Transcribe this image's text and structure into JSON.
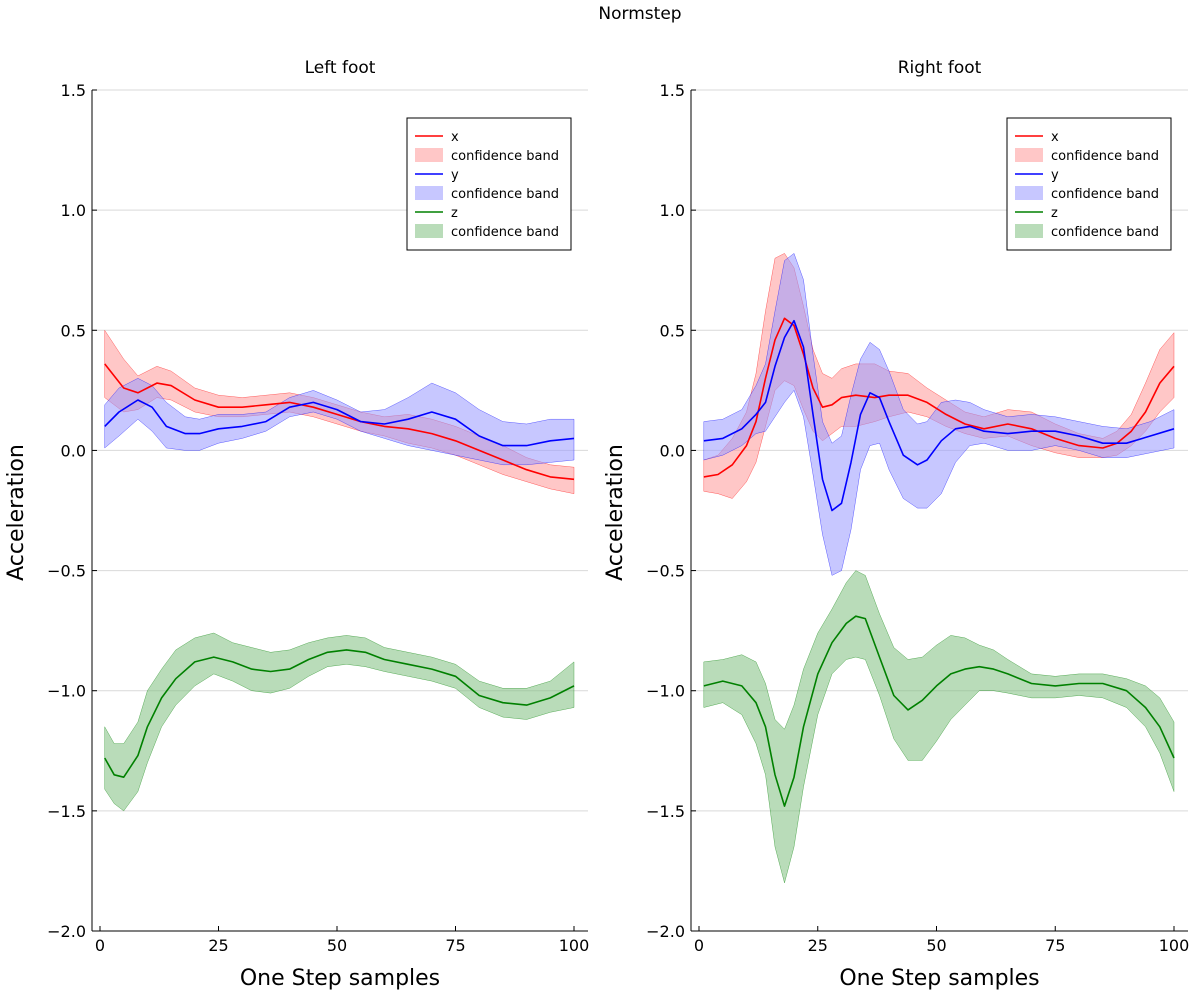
{
  "figure": {
    "title": "Normstep"
  },
  "colors": {
    "x": "#ff0000",
    "x_band": "#ff9999",
    "y": "#0000ff",
    "y_band": "#9999ff",
    "z": "#008000",
    "z_band": "#80c080"
  },
  "chart_data": [
    {
      "type": "line",
      "title": "Left foot",
      "xlabel": "One Step samples",
      "ylabel": "Acceleration",
      "xlim": [
        0,
        100
      ],
      "ylim": [
        -2.0,
        1.5
      ],
      "xticks": [
        0,
        25,
        50,
        75,
        100
      ],
      "yticks": [
        1.5,
        1.0,
        0.5,
        0.0,
        -0.5,
        -1.0,
        -1.5,
        -2.0
      ],
      "ytick_labels": [
        "1.5",
        "1.0",
        "0.5",
        "0.0",
        "−0.5",
        "−1.0",
        "−1.5",
        "−2.0"
      ],
      "grid": "horizontal",
      "legend_position": "top-right",
      "legend": [
        "x",
        "confidence band",
        "y",
        "confidence band",
        "z",
        "confidence band"
      ],
      "series": [
        {
          "name": "x",
          "key": "x",
          "x": [
            1,
            5,
            8,
            12,
            15,
            20,
            25,
            30,
            35,
            40,
            45,
            50,
            55,
            60,
            65,
            70,
            75,
            80,
            85,
            90,
            95,
            100
          ],
          "values": [
            0.36,
            0.26,
            0.24,
            0.28,
            0.27,
            0.21,
            0.18,
            0.18,
            0.19,
            0.2,
            0.18,
            0.15,
            0.12,
            0.1,
            0.09,
            0.07,
            0.04,
            0.0,
            -0.04,
            -0.08,
            -0.11,
            -0.12
          ],
          "lower": [
            0.22,
            0.16,
            0.17,
            0.22,
            0.21,
            0.16,
            0.14,
            0.14,
            0.15,
            0.16,
            0.14,
            0.11,
            0.08,
            0.06,
            0.03,
            0.01,
            -0.02,
            -0.06,
            -0.1,
            -0.13,
            -0.16,
            -0.18
          ],
          "upper": [
            0.5,
            0.38,
            0.31,
            0.35,
            0.33,
            0.26,
            0.23,
            0.22,
            0.23,
            0.24,
            0.22,
            0.19,
            0.16,
            0.14,
            0.15,
            0.13,
            0.1,
            0.06,
            0.02,
            -0.03,
            -0.06,
            -0.07
          ]
        },
        {
          "name": "y",
          "key": "y",
          "x": [
            1,
            4,
            8,
            11,
            14,
            18,
            21,
            25,
            30,
            35,
            40,
            45,
            50,
            55,
            60,
            65,
            70,
            75,
            80,
            85,
            90,
            95,
            100
          ],
          "values": [
            0.1,
            0.16,
            0.21,
            0.18,
            0.1,
            0.07,
            0.07,
            0.09,
            0.1,
            0.12,
            0.18,
            0.2,
            0.17,
            0.12,
            0.11,
            0.13,
            0.16,
            0.13,
            0.06,
            0.02,
            0.02,
            0.04,
            0.05
          ],
          "lower": [
            0.01,
            0.06,
            0.13,
            0.08,
            0.01,
            0.0,
            0.0,
            0.03,
            0.05,
            0.08,
            0.14,
            0.16,
            0.13,
            0.08,
            0.05,
            0.02,
            0.0,
            -0.02,
            -0.04,
            -0.06,
            -0.06,
            -0.05,
            -0.04
          ],
          "upper": [
            0.19,
            0.26,
            0.3,
            0.27,
            0.2,
            0.14,
            0.13,
            0.15,
            0.15,
            0.16,
            0.22,
            0.25,
            0.21,
            0.16,
            0.17,
            0.22,
            0.28,
            0.24,
            0.17,
            0.12,
            0.11,
            0.13,
            0.13
          ]
        },
        {
          "name": "z",
          "key": "z",
          "x": [
            1,
            3,
            5,
            8,
            10,
            13,
            16,
            20,
            24,
            28,
            32,
            36,
            40,
            44,
            48,
            52,
            56,
            60,
            65,
            70,
            75,
            80,
            85,
            90,
            95,
            100
          ],
          "values": [
            -1.28,
            -1.35,
            -1.36,
            -1.27,
            -1.15,
            -1.03,
            -0.95,
            -0.88,
            -0.86,
            -0.88,
            -0.91,
            -0.92,
            -0.91,
            -0.87,
            -0.84,
            -0.83,
            -0.84,
            -0.87,
            -0.89,
            -0.91,
            -0.94,
            -1.02,
            -1.05,
            -1.06,
            -1.03,
            -0.98
          ],
          "lower": [
            -1.41,
            -1.47,
            -1.5,
            -1.42,
            -1.3,
            -1.15,
            -1.06,
            -0.98,
            -0.93,
            -0.96,
            -1.0,
            -1.01,
            -0.99,
            -0.94,
            -0.9,
            -0.89,
            -0.9,
            -0.92,
            -0.94,
            -0.96,
            -0.99,
            -1.07,
            -1.11,
            -1.12,
            -1.09,
            -1.07
          ],
          "upper": [
            -1.15,
            -1.22,
            -1.22,
            -1.13,
            -1.0,
            -0.91,
            -0.83,
            -0.78,
            -0.76,
            -0.8,
            -0.82,
            -0.84,
            -0.83,
            -0.8,
            -0.78,
            -0.77,
            -0.78,
            -0.82,
            -0.84,
            -0.86,
            -0.89,
            -0.96,
            -0.99,
            -0.99,
            -0.96,
            -0.88
          ]
        }
      ]
    },
    {
      "type": "line",
      "title": "Right foot",
      "xlabel": "One Step samples",
      "ylabel": "Acceleration",
      "xlim": [
        0,
        100
      ],
      "ylim": [
        -2.0,
        1.5
      ],
      "xticks": [
        0,
        25,
        50,
        75,
        100
      ],
      "yticks": [
        1.5,
        1.0,
        0.5,
        0.0,
        -0.5,
        -1.0,
        -1.5,
        -2.0
      ],
      "ytick_labels": [
        "1.5",
        "1.0",
        "0.5",
        "0.0",
        "−0.5",
        "−1.0",
        "−1.5",
        "−2.0"
      ],
      "grid": "horizontal",
      "legend_position": "top-right",
      "legend": [
        "x",
        "confidence band",
        "y",
        "confidence band",
        "z",
        "confidence band"
      ],
      "series": [
        {
          "name": "x",
          "key": "x",
          "x": [
            1,
            4,
            7,
            10,
            12,
            14,
            16,
            18,
            20,
            22,
            24,
            26,
            28,
            30,
            33,
            37,
            40,
            44,
            48,
            52,
            56,
            60,
            65,
            70,
            75,
            80,
            85,
            88,
            91,
            94,
            97,
            100
          ],
          "values": [
            -0.11,
            -0.1,
            -0.06,
            0.02,
            0.12,
            0.3,
            0.46,
            0.55,
            0.52,
            0.4,
            0.26,
            0.18,
            0.19,
            0.22,
            0.23,
            0.22,
            0.23,
            0.23,
            0.2,
            0.15,
            0.11,
            0.09,
            0.11,
            0.09,
            0.05,
            0.02,
            0.01,
            0.03,
            0.08,
            0.16,
            0.28,
            0.35
          ],
          "lower": [
            -0.17,
            -0.18,
            -0.2,
            -0.13,
            -0.05,
            0.1,
            0.25,
            0.29,
            0.27,
            0.17,
            0.08,
            0.04,
            0.07,
            0.1,
            0.1,
            0.12,
            0.14,
            0.16,
            0.14,
            0.1,
            0.07,
            0.05,
            0.06,
            0.02,
            -0.01,
            -0.03,
            -0.03,
            -0.02,
            0.02,
            0.08,
            0.16,
            0.22
          ],
          "upper": [
            -0.04,
            -0.02,
            0.05,
            0.16,
            0.32,
            0.58,
            0.8,
            0.82,
            0.76,
            0.6,
            0.42,
            0.32,
            0.3,
            0.34,
            0.36,
            0.36,
            0.33,
            0.32,
            0.26,
            0.21,
            0.16,
            0.14,
            0.17,
            0.16,
            0.11,
            0.07,
            0.05,
            0.08,
            0.15,
            0.28,
            0.42,
            0.49
          ]
        },
        {
          "name": "y",
          "key": "y",
          "x": [
            1,
            5,
            9,
            12,
            14,
            16,
            18,
            20,
            22,
            24,
            26,
            28,
            30,
            32,
            34,
            36,
            38,
            40,
            43,
            46,
            48,
            51,
            54,
            57,
            60,
            65,
            70,
            75,
            80,
            85,
            90,
            95,
            100
          ],
          "values": [
            0.04,
            0.05,
            0.09,
            0.15,
            0.2,
            0.35,
            0.47,
            0.54,
            0.43,
            0.15,
            -0.12,
            -0.25,
            -0.22,
            -0.05,
            0.15,
            0.24,
            0.22,
            0.12,
            -0.02,
            -0.06,
            -0.04,
            0.04,
            0.09,
            0.1,
            0.08,
            0.07,
            0.08,
            0.08,
            0.06,
            0.03,
            0.03,
            0.06,
            0.09
          ],
          "lower": [
            -0.04,
            -0.02,
            0.02,
            0.07,
            0.08,
            0.14,
            0.2,
            0.25,
            0.14,
            -0.1,
            -0.35,
            -0.52,
            -0.5,
            -0.33,
            -0.08,
            0.02,
            0.03,
            -0.08,
            -0.2,
            -0.24,
            -0.24,
            -0.18,
            -0.05,
            0.02,
            0.03,
            0.0,
            0.0,
            0.02,
            0.0,
            -0.03,
            -0.03,
            -0.01,
            0.01
          ],
          "upper": [
            0.12,
            0.13,
            0.17,
            0.27,
            0.36,
            0.58,
            0.79,
            0.82,
            0.71,
            0.4,
            0.12,
            0.03,
            0.06,
            0.23,
            0.38,
            0.45,
            0.42,
            0.33,
            0.17,
            0.11,
            0.12,
            0.2,
            0.21,
            0.2,
            0.17,
            0.14,
            0.15,
            0.14,
            0.12,
            0.1,
            0.09,
            0.12,
            0.17
          ]
        },
        {
          "name": "z",
          "key": "z",
          "x": [
            1,
            5,
            9,
            12,
            14,
            16,
            18,
            20,
            22,
            25,
            28,
            31,
            33,
            35,
            38,
            41,
            44,
            47,
            50,
            53,
            56,
            59,
            62,
            65,
            70,
            75,
            80,
            85,
            90,
            94,
            97,
            100
          ],
          "values": [
            -0.98,
            -0.96,
            -0.98,
            -1.05,
            -1.15,
            -1.35,
            -1.48,
            -1.36,
            -1.15,
            -0.93,
            -0.8,
            -0.72,
            -0.69,
            -0.7,
            -0.86,
            -1.02,
            -1.08,
            -1.04,
            -0.98,
            -0.93,
            -0.91,
            -0.9,
            -0.91,
            -0.93,
            -0.97,
            -0.98,
            -0.97,
            -0.97,
            -1.0,
            -1.07,
            -1.15,
            -1.28
          ],
          "lower": [
            -1.07,
            -1.05,
            -1.1,
            -1.22,
            -1.35,
            -1.65,
            -1.8,
            -1.65,
            -1.4,
            -1.1,
            -0.93,
            -0.87,
            -0.86,
            -0.87,
            -1.02,
            -1.2,
            -1.29,
            -1.29,
            -1.21,
            -1.12,
            -1.06,
            -1.0,
            -1.0,
            -1.01,
            -1.03,
            -1.03,
            -1.02,
            -1.03,
            -1.07,
            -1.15,
            -1.26,
            -1.42
          ],
          "upper": [
            -0.88,
            -0.87,
            -0.85,
            -0.88,
            -0.97,
            -1.12,
            -1.16,
            -1.06,
            -0.91,
            -0.76,
            -0.66,
            -0.55,
            -0.5,
            -0.52,
            -0.68,
            -0.82,
            -0.87,
            -0.86,
            -0.81,
            -0.77,
            -0.78,
            -0.81,
            -0.83,
            -0.87,
            -0.93,
            -0.94,
            -0.93,
            -0.93,
            -0.95,
            -0.98,
            -1.03,
            -1.13
          ]
        }
      ]
    }
  ]
}
